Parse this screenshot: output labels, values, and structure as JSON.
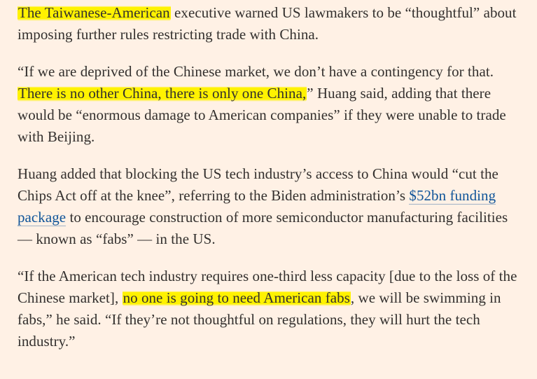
{
  "article": {
    "p1": {
      "highlight1": "The Taiwanese-American",
      "text1": " executive warned US lawmakers to be “thoughtful” about imposing further rules restricting trade with China."
    },
    "p2": {
      "text1": "“If we are deprived of the Chinese market, we don’t have a contingency for that. ",
      "highlight1": "There is no other China, there is only one China,",
      "text2": "” Huang said, adding that there would be “enormous damage to American companies” if they were unable to trade with Beijing."
    },
    "p3": {
      "text1": "Huang added that blocking the US tech industry’s access to China would “cut the Chips Act off at the knee”, referring to the Biden administration’s ",
      "link1": "$52bn funding package",
      "text2": " to encourage construction of more semiconductor manufacturing facilities — known as “fabs” — in the US."
    },
    "p4": {
      "text1": "“If the American tech industry requires one-third less capacity [due to the loss of the Chinese market], ",
      "highlight1": "no one is going to need American fabs",
      "text2": ", we will be swimming in fabs,” he said. “If they’re not thoughtful on regulations, they will hurt the tech industry.”"
    }
  }
}
